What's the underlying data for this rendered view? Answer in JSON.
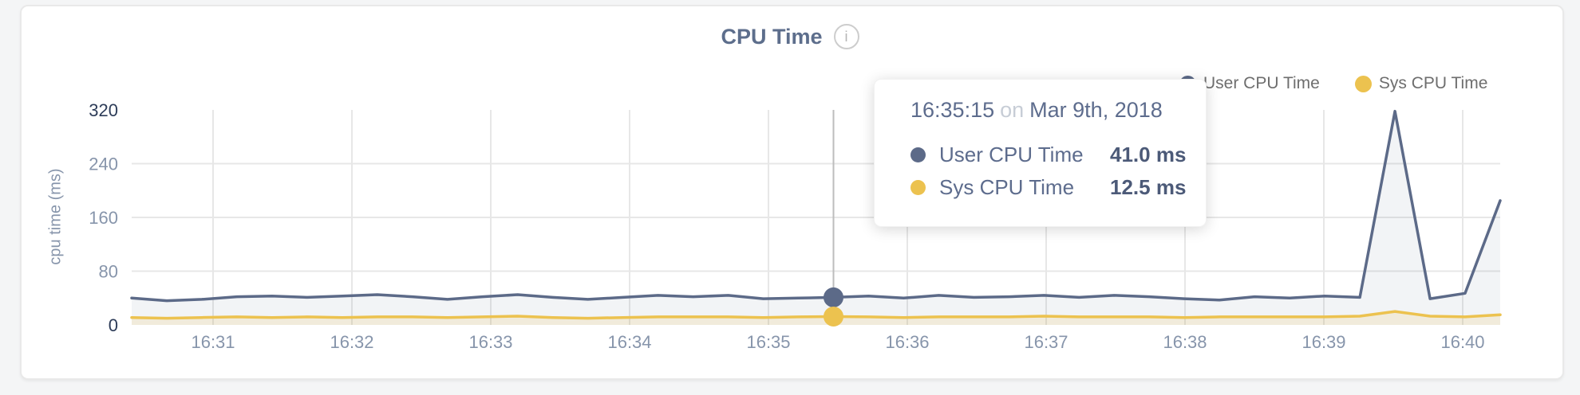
{
  "header": {
    "title": "CPU Time",
    "info_icon": "i"
  },
  "legend": {
    "items": [
      {
        "label": "User CPU Time",
        "color": "#5c6a88"
      },
      {
        "label": "Sys CPU Time",
        "color": "#ecc24f"
      }
    ]
  },
  "tooltip": {
    "time": "16:35:15",
    "conjunction": "on",
    "date": "Mar 9th, 2018",
    "rows": [
      {
        "label": "User CPU Time",
        "value": "41.0 ms",
        "color": "#5c6a88"
      },
      {
        "label": "Sys CPU Time",
        "value": "12.5 ms",
        "color": "#ecc24f"
      }
    ]
  },
  "colors": {
    "grid": "#e7e7e7",
    "crosshair": "#bdbdbd",
    "tick": "#8795ab",
    "tick_strong": "#2d3c58"
  },
  "chart_data": {
    "type": "area",
    "title": "CPU Time",
    "xlabel": "",
    "ylabel": "cpu time (ms)",
    "unit": "ms",
    "ylim": [
      0,
      320
    ],
    "y_ticks": [
      0,
      80,
      160,
      240,
      320
    ],
    "x_ticks": [
      "16:31",
      "16:32",
      "16:33",
      "16:34",
      "16:35",
      "16:36",
      "16:37",
      "16:38",
      "16:39",
      "16:40"
    ],
    "grid": true,
    "legend_position": "top-right",
    "points_evenly_spaced": true,
    "series": [
      {
        "name": "User CPU Time",
        "color": "#5c6a88",
        "fill": "rgba(93,110,140,0.08)",
        "values": [
          40,
          36,
          38,
          42,
          43,
          41,
          43,
          45,
          42,
          38,
          42,
          45,
          41,
          38,
          41,
          44,
          42,
          44,
          39,
          40,
          41,
          43,
          40,
          44,
          41,
          42,
          44,
          41,
          44,
          42,
          39,
          37,
          42,
          40,
          43,
          41,
          318,
          39,
          47,
          185
        ]
      },
      {
        "name": "Sys CPU Time",
        "color": "#ecc24f",
        "fill": "rgba(236,194,79,0.16)",
        "values": [
          11,
          10,
          11,
          12,
          11,
          12,
          11,
          12,
          12,
          11,
          12,
          13,
          11,
          10,
          11,
          12,
          12,
          12,
          11,
          12,
          12.5,
          12,
          11,
          12,
          12,
          12,
          13,
          12,
          12,
          12,
          11,
          12,
          12,
          12,
          12,
          13,
          20,
          13,
          12,
          15
        ]
      }
    ],
    "hover": {
      "index": 20,
      "time": "16:35:15",
      "user_ms": 41.0,
      "sys_ms": 12.5
    }
  }
}
